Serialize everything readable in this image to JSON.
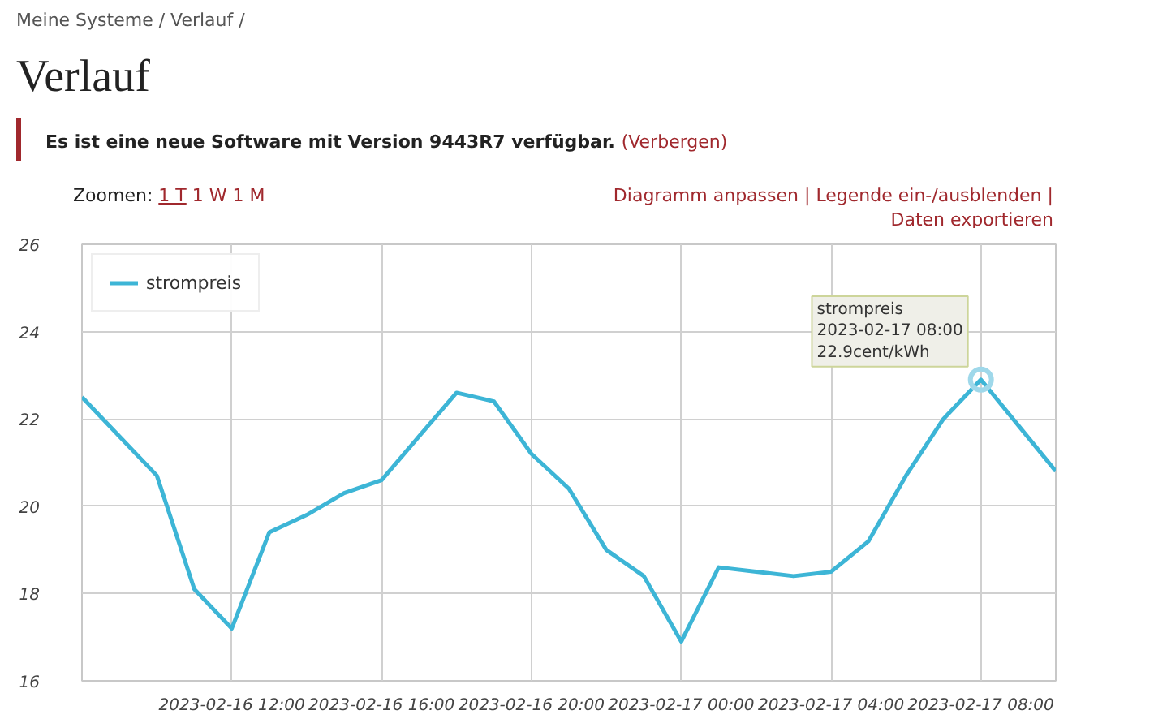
{
  "chart_data": {
    "type": "line",
    "title": "Verlauf",
    "annotations": [
      "Meine Systeme / Verlauf /",
      "Es ist eine neue Software mit Version 9443R7 verfügbar.",
      "(Verbergen)",
      "Zoomen:",
      "1 T",
      "1 W",
      "1 M",
      "Diagramm anpassen |  Legende ein-/ausblenden |  Daten exportieren",
      {
        "text": "strompreis\n2023-02-17 08:00\n22.9cent/kWh",
        "x": "2023-02-17T08:00",
        "y": 22.9
      }
    ],
    "x": [
      "2023-02-16T08:00",
      "2023-02-16T09:00",
      "2023-02-16T10:00",
      "2023-02-16T11:00",
      "2023-02-16T12:00",
      "2023-02-16T13:00",
      "2023-02-16T14:00",
      "2023-02-16T15:00",
      "2023-02-16T16:00",
      "2023-02-16T17:00",
      "2023-02-16T18:00",
      "2023-02-16T19:00",
      "2023-02-16T20:00",
      "2023-02-16T21:00",
      "2023-02-16T22:00",
      "2023-02-16T23:00",
      "2023-02-17T00:00",
      "2023-02-17T01:00",
      "2023-02-17T02:00",
      "2023-02-17T03:00",
      "2023-02-17T04:00",
      "2023-02-17T05:00",
      "2023-02-17T06:00",
      "2023-02-17T07:00",
      "2023-02-17T08:00",
      "2023-02-17T10:00"
    ],
    "series": [
      {
        "name": "strompreis",
        "color": "#3db5d6",
        "values": [
          22.5,
          21.6,
          20.7,
          18.1,
          17.2,
          19.4,
          19.8,
          20.3,
          20.6,
          21.6,
          22.6,
          22.4,
          21.2,
          20.4,
          19.0,
          18.4,
          16.9,
          18.6,
          18.5,
          18.4,
          18.5,
          19.2,
          20.7,
          22.0,
          22.9,
          20.8
        ]
      }
    ],
    "xlim": [
      "2023-02-16T08:00",
      "2023-02-17T10:00"
    ],
    "xticks": [
      {
        "value": "2023-02-16T12:00",
        "label": "2023-02-16 12:00"
      },
      {
        "value": "2023-02-16T16:00",
        "label": "2023-02-16 16:00"
      },
      {
        "value": "2023-02-16T20:00",
        "label": "2023-02-16 20:00"
      },
      {
        "value": "2023-02-17T00:00",
        "label": "2023-02-17 00:00"
      },
      {
        "value": "2023-02-17T04:00",
        "label": "2023-02-17 04:00"
      },
      {
        "value": "2023-02-17T08:00",
        "label": "2023-02-17 08:00"
      }
    ],
    "ylim": [
      16,
      26
    ],
    "yticks": [
      16,
      18,
      20,
      22,
      24,
      26
    ],
    "grid": true,
    "legend": "top left",
    "marker": "none",
    "line_style": "solid"
  }
}
